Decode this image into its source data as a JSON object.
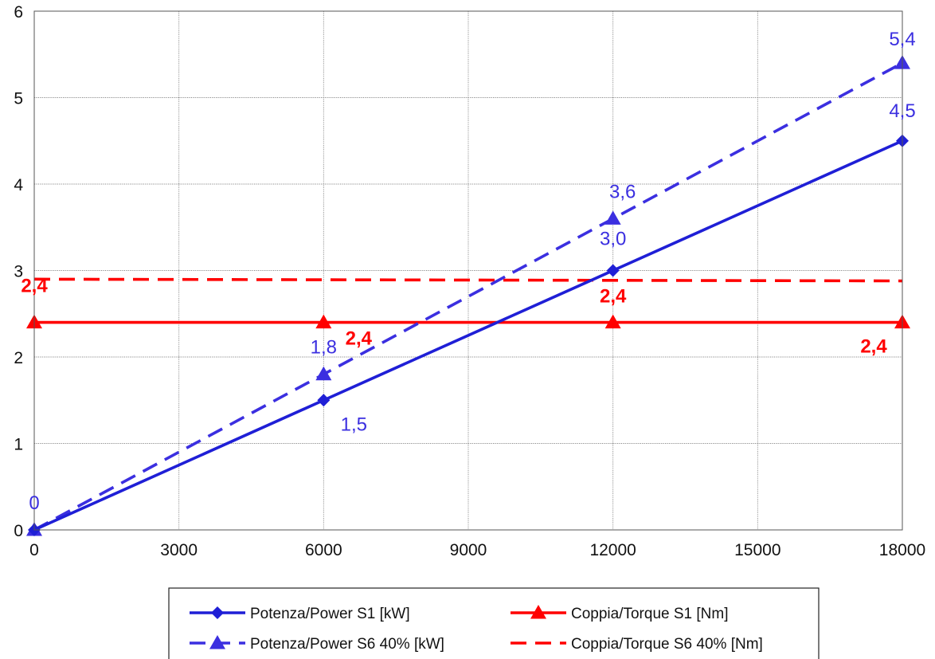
{
  "chart_data": {
    "type": "line",
    "title": "",
    "xlabel": "",
    "ylabel": "",
    "xlim": [
      0,
      18000
    ],
    "ylim": [
      0,
      6
    ],
    "x_ticks": [
      "0",
      "3000",
      "6000",
      "9000",
      "12000",
      "15000",
      "18000"
    ],
    "y_ticks": [
      "0",
      "1",
      "2",
      "3",
      "4",
      "5",
      "6"
    ],
    "grid": true,
    "legend_position": "bottom-center",
    "series": [
      {
        "name": "Potenza/Power S1 [kW]",
        "x": [
          0,
          6000,
          12000,
          18000
        ],
        "y": [
          0,
          1.5,
          3.0,
          4.5
        ],
        "color": "#1f1fd6",
        "line_style": "solid",
        "marker": "diamond",
        "labels": [
          "",
          "1,5",
          "3,0",
          "4,5"
        ]
      },
      {
        "name": "Potenza/Power S6 40% [kW]",
        "x": [
          0,
          6000,
          12000,
          18000
        ],
        "y": [
          0,
          1.8,
          3.6,
          5.4
        ],
        "color": "#3b2fe0",
        "line_style": "dashed",
        "marker": "triangle",
        "labels": [
          "0",
          "1,8",
          "3,6",
          "5,4"
        ]
      },
      {
        "name": "Coppia/Torque S1 [Nm]",
        "x": [
          0,
          6000,
          12000,
          18000
        ],
        "y": [
          2.4,
          2.4,
          2.4,
          2.4
        ],
        "color": "#ff0000",
        "line_style": "solid",
        "marker": "triangle",
        "labels": [
          "2,4",
          "2,4",
          "2,4",
          "2,4"
        ]
      },
      {
        "name": "Coppia/Torque S6 40% [Nm]",
        "x": [
          0,
          18000
        ],
        "y": [
          2.9,
          2.88
        ],
        "color": "#ff0000",
        "line_style": "dashed",
        "marker": "none",
        "labels": []
      }
    ]
  }
}
